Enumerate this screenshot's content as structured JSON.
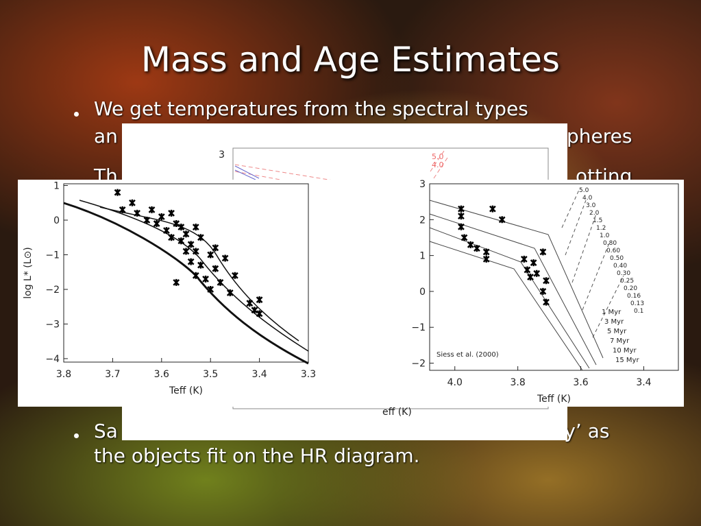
{
  "slide": {
    "title": "Mass and Age Estimates",
    "bullets": [
      {
        "lines": [
          "We get temperatures from the spectral types",
          "an",
          "pheres"
        ]
      },
      {
        "lines": [
          "Th",
          "otting"
        ]
      },
      {
        "lines": [
          "Sa",
          "illy’ as",
          "the objects fit on the HR diagram."
        ]
      }
    ],
    "figures": [
      {
        "name": "middle",
        "yticks": [
          3
        ],
        "mass_labels": [
          {
            "value": 5,
            "label": "5.0"
          },
          {
            "value": 4,
            "label": "4.0"
          }
        ],
        "xlabel": "eff (K)"
      },
      {
        "name": "left",
        "xlim": [
          3.8,
          3.3
        ],
        "ylim": [
          -4.1,
          1.05
        ],
        "xticks": [
          {
            "value": 3.8,
            "label": "3.8"
          },
          3.7,
          3.6,
          3.5,
          3.4,
          3.3
        ],
        "yticks": [
          1,
          0,
          {
            "value": -1,
            "label": "−1"
          },
          {
            "value": -2,
            "label": "−2"
          },
          {
            "value": -3,
            "label": "−3"
          },
          {
            "value": -4,
            "label": "−4"
          }
        ],
        "xlabel": "Teff (K)",
        "ylabel": "log L* (L⊙)",
        "points_x": [
          3.69,
          3.68,
          3.66,
          3.65,
          3.63,
          3.62,
          3.61,
          3.6,
          3.59,
          3.58,
          3.58,
          3.57,
          3.56,
          3.56,
          3.55,
          3.55,
          3.54,
          3.54,
          3.53,
          3.53,
          3.52,
          3.52,
          3.51,
          3.5,
          3.5,
          3.49,
          3.48,
          3.47,
          3.46,
          3.45,
          3.42,
          3.41,
          3.4,
          3.4,
          3.57,
          3.53,
          3.49
        ],
        "points_y": [
          0.8,
          0.3,
          0.5,
          0.2,
          0.0,
          0.3,
          -0.1,
          0.1,
          -0.3,
          0.2,
          -0.5,
          -0.1,
          -0.6,
          -0.2,
          -0.9,
          -0.4,
          -1.2,
          -0.7,
          -1.6,
          -0.9,
          -1.3,
          -0.5,
          -1.7,
          -1.0,
          -2.0,
          -1.4,
          -1.8,
          -1.1,
          -2.1,
          -1.6,
          -2.4,
          -2.6,
          -2.3,
          -2.7,
          -1.8,
          -0.2,
          -0.8
        ]
      },
      {
        "name": "right",
        "xlim": [
          4.08,
          3.29
        ],
        "ylim": [
          -2.2,
          3.0
        ],
        "xticks": [
          {
            "value": 4.0,
            "label": "4.0"
          },
          3.8,
          3.6,
          3.4
        ],
        "yticks": [
          3,
          2,
          1,
          0,
          {
            "value": -1,
            "label": "−1"
          },
          {
            "value": -2,
            "label": "−2"
          }
        ],
        "xlabel": "Teff (K)",
        "ylabel": "log L* (L⊙)",
        "citation": "Siess et al. (2000)",
        "mass_labels": [
          "5.0",
          "4.0",
          "3.0",
          "2.0",
          "1.5",
          "1.2",
          "1.0",
          "0.80",
          "0.60",
          "0.50",
          "0.40",
          "0.30",
          "0.25",
          "0.20",
          "0.16",
          "0.13",
          "0.1"
        ],
        "age_labels": [
          "1 Myr",
          "3 Myr",
          "5 Myr",
          "7 Myr",
          "10 Myr",
          "15 Myr"
        ],
        "points_x": [
          3.98,
          3.98,
          3.97,
          3.95,
          3.93,
          3.9,
          3.88,
          3.85,
          3.78,
          3.77,
          3.76,
          3.75,
          3.74,
          3.72,
          3.72,
          3.71,
          3.71,
          3.98,
          3.9
        ],
        "points_y": [
          2.3,
          1.8,
          1.5,
          1.3,
          1.2,
          1.1,
          2.3,
          2.0,
          0.9,
          0.6,
          0.4,
          0.8,
          0.5,
          1.1,
          0.0,
          -0.3,
          0.3,
          2.1,
          0.9
        ]
      }
    ]
  }
}
